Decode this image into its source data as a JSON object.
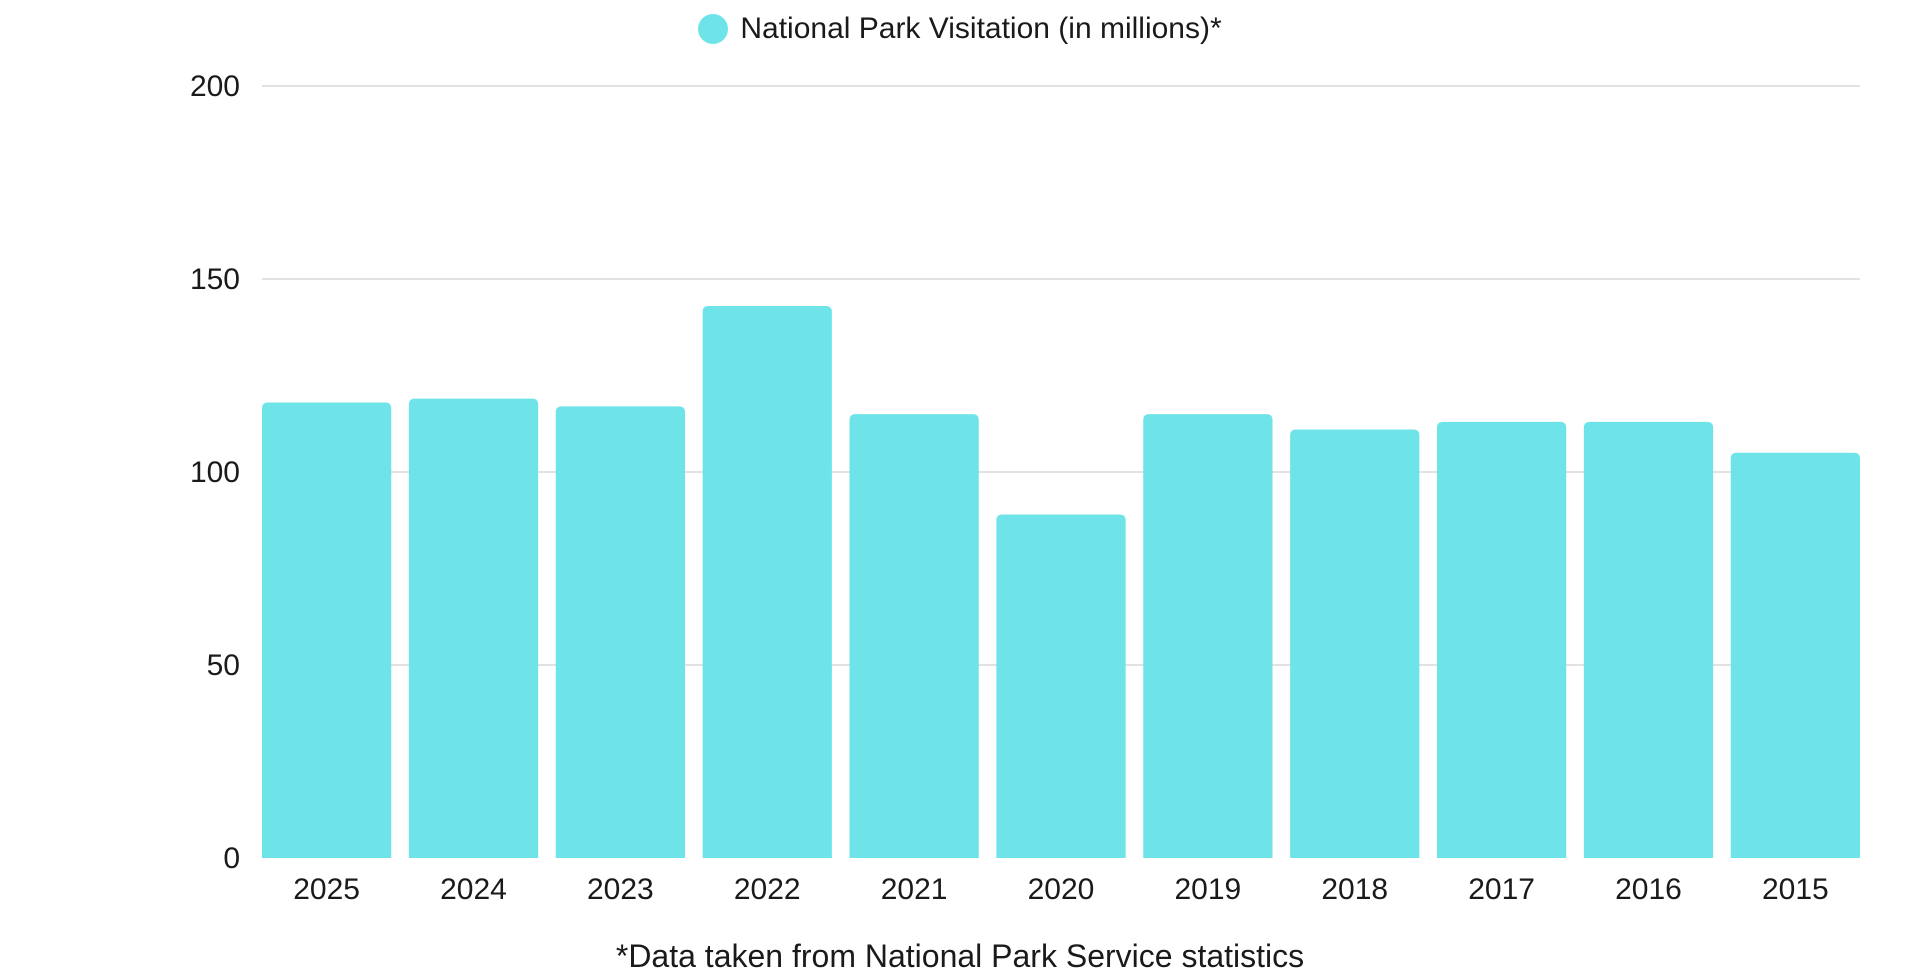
{
  "legend": {
    "label": "National Park Visitation (in millions)*",
    "color": "#6ee4e8"
  },
  "footnote": "*Data taken from National Park Service statistics",
  "colors": {
    "bar": "#6ee4e8",
    "grid": "#d9d9d9",
    "text": "#1a1a1a"
  },
  "chart_data": {
    "type": "bar",
    "categories": [
      "2025",
      "2024",
      "2023",
      "2022",
      "2021",
      "2020",
      "2019",
      "2018",
      "2017",
      "2016",
      "2015"
    ],
    "series": [
      {
        "name": "National Park Visitation (in millions)*",
        "values": [
          118,
          119,
          117,
          143,
          115,
          89,
          115,
          111,
          113,
          113,
          105
        ]
      }
    ],
    "ylim": [
      0,
      200
    ],
    "yticks": [
      0,
      50,
      100,
      150,
      200
    ],
    "grid": true,
    "legend_position": "top-center",
    "xlabel": "",
    "ylabel": ""
  }
}
